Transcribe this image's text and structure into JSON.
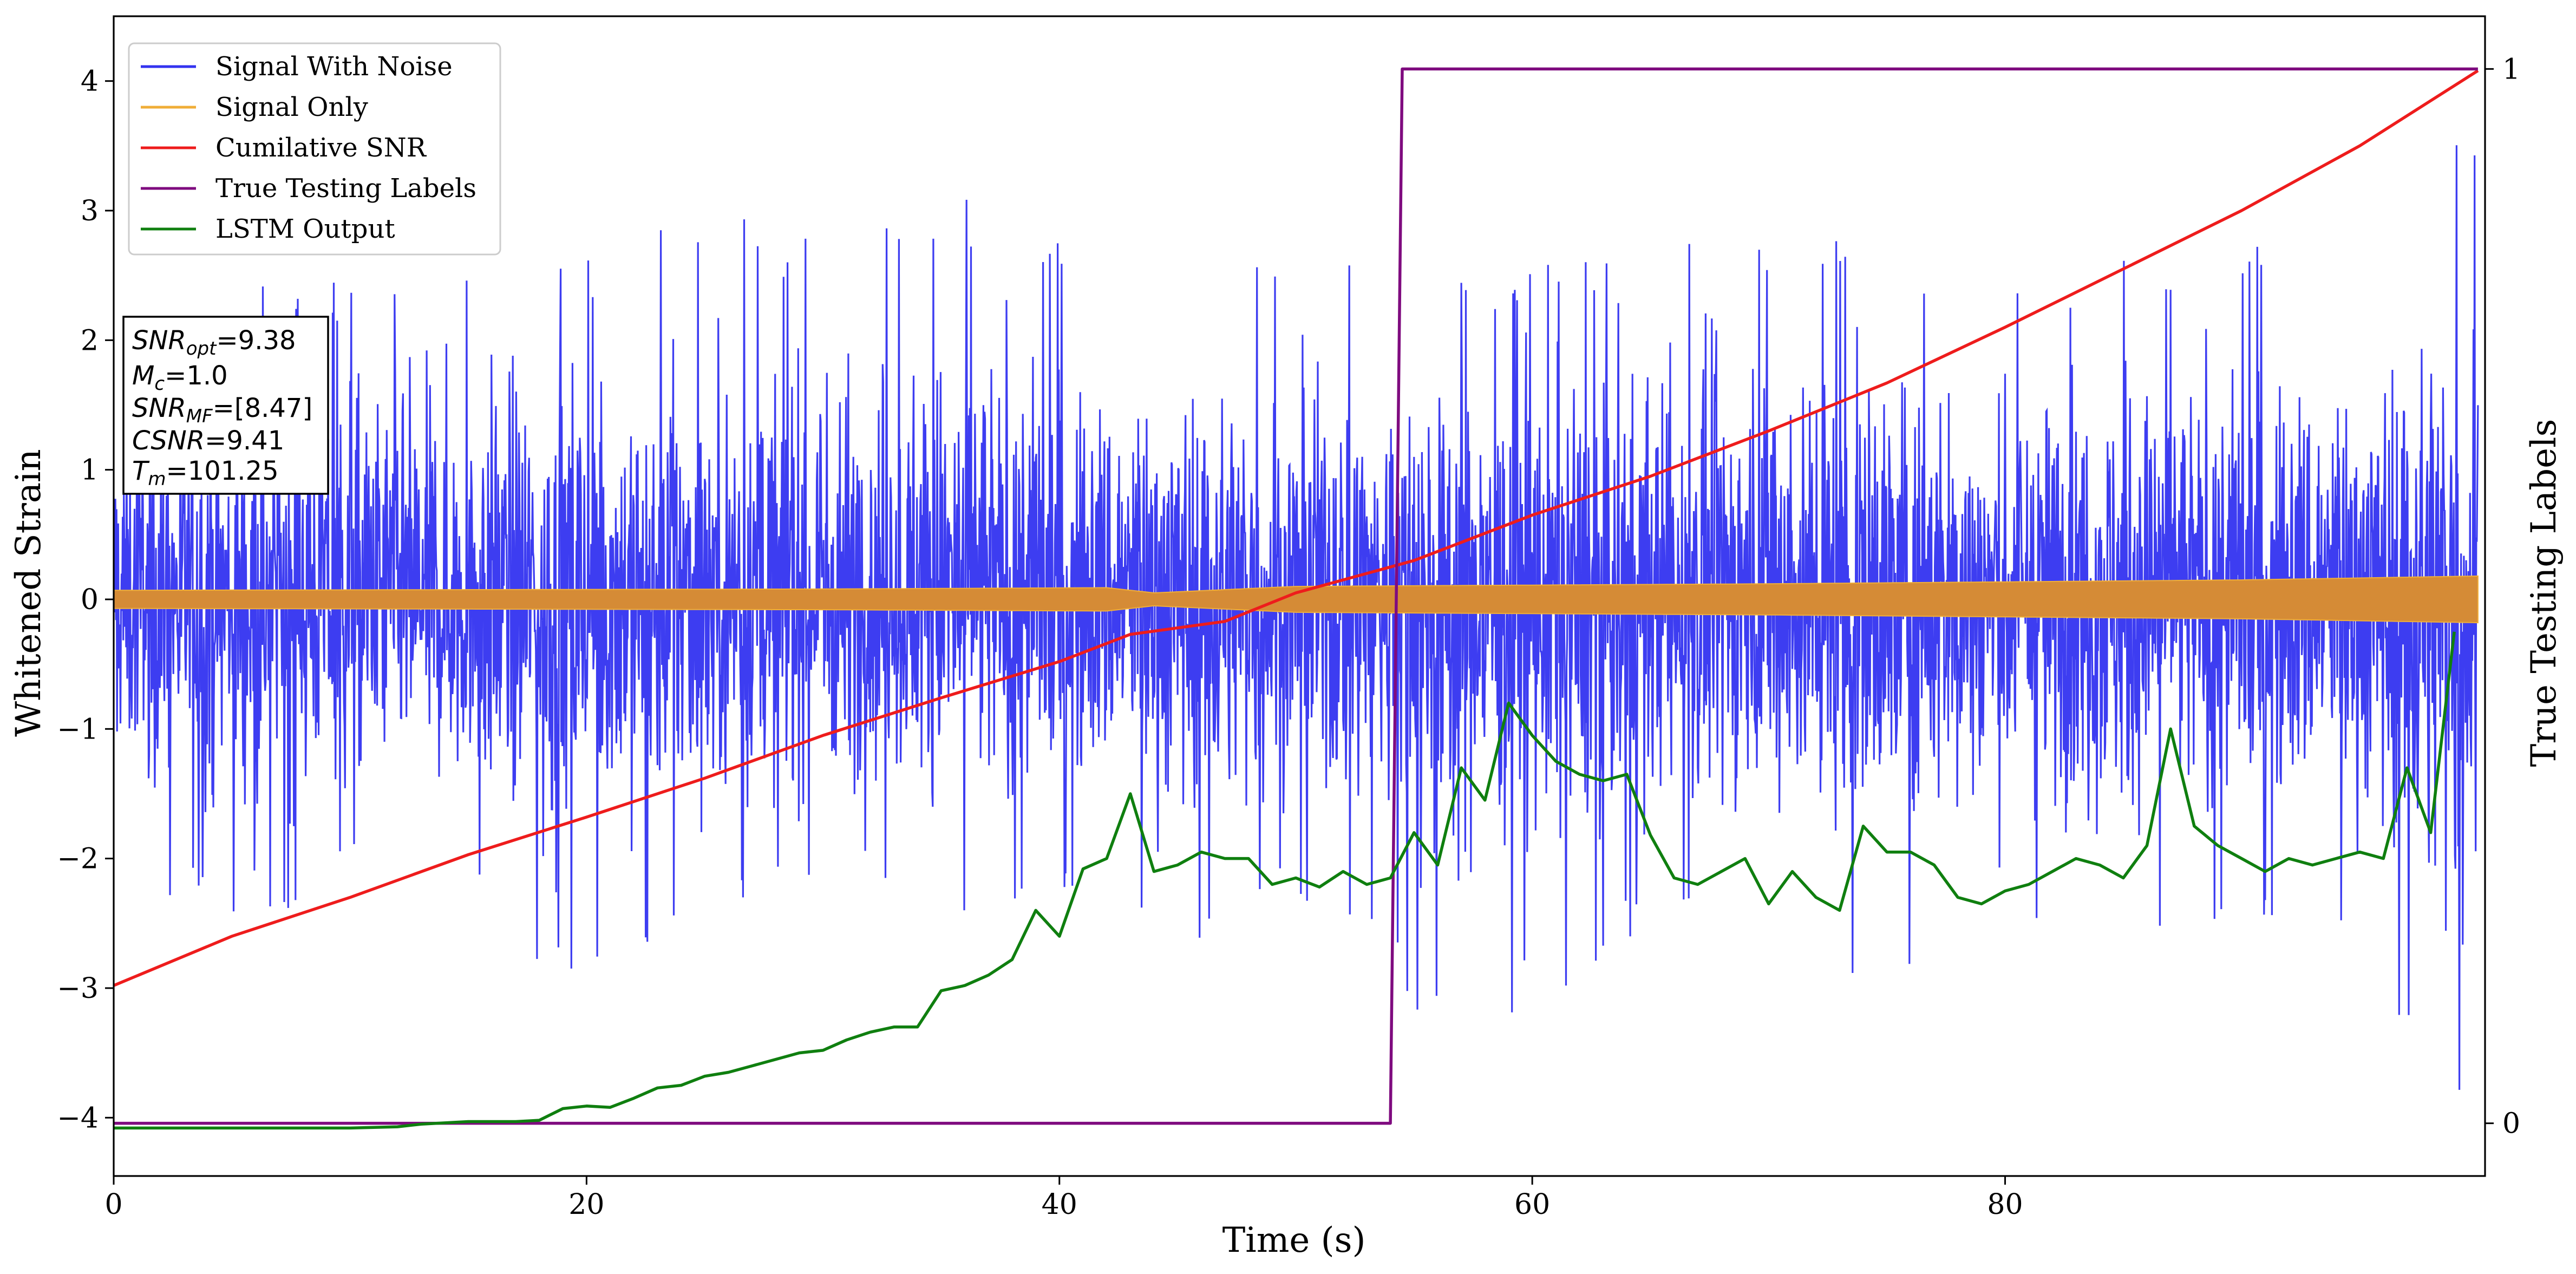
{
  "chart_data": {
    "type": "line",
    "xlabel": "Time (s)",
    "ylabel": "Whitened Strain",
    "ylabel_right": "True Testing Labels",
    "xlim": [
      0,
      100.3
    ],
    "ylim": [
      -4.45,
      4.5
    ],
    "ylim_right": [
      -0.05,
      1.05
    ],
    "x_ticks": [
      0,
      20,
      40,
      60,
      80
    ],
    "y_ticks": [
      -4,
      -3,
      -2,
      -1,
      0,
      1,
      2,
      3,
      4
    ],
    "y_ticks_right": [
      0,
      1
    ],
    "legend_position": "top-left",
    "legend": [
      "Signal With Noise",
      "Signal Only",
      "Cumilative SNR",
      "True Testing Labels",
      "LSTM Output"
    ],
    "info_box": {
      "lines": [
        {
          "name": "SNR",
          "sub": "opt",
          "value": "=9.38"
        },
        {
          "name": "M",
          "sub": "c",
          "value": "=1.0"
        },
        {
          "name": "SNR",
          "sub": "MF",
          "value": "=[8.47]"
        },
        {
          "name": "CSNR",
          "sub": "",
          "value": "=9.41"
        },
        {
          "name": "T",
          "sub": "m",
          "value": "=101.25"
        }
      ]
    },
    "series": [
      {
        "name": "Signal With Noise",
        "color": "#3333f0",
        "axis": "left",
        "description": "dense noisy strain; envelope summarized per time window",
        "envelope": [
          {
            "x": 0,
            "max": 2.2,
            "min": -2.1
          },
          {
            "x": 5,
            "max": 2.4,
            "min": -2.6
          },
          {
            "x": 10,
            "max": 2.5,
            "min": -2.2
          },
          {
            "x": 15,
            "max": 2.8,
            "min": -2.3
          },
          {
            "x": 18.5,
            "max": 2.9,
            "min": -3.1
          },
          {
            "x": 25,
            "max": 2.9,
            "min": -2.4
          },
          {
            "x": 29,
            "max": 3.0,
            "min": -2.3
          },
          {
            "x": 33,
            "max": 3.0,
            "min": -2.2
          },
          {
            "x": 37,
            "max": 3.15,
            "min": -2.5
          },
          {
            "x": 42,
            "max": 2.6,
            "min": -2.3
          },
          {
            "x": 45,
            "max": 2.7,
            "min": -2.7
          },
          {
            "x": 50,
            "max": 2.6,
            "min": -2.3
          },
          {
            "x": 55,
            "max": 2.7,
            "min": -3.2
          },
          {
            "x": 60,
            "max": 2.6,
            "min": -3.2
          },
          {
            "x": 65,
            "max": 2.7,
            "min": -2.6
          },
          {
            "x": 70,
            "max": 2.9,
            "min": -2.6
          },
          {
            "x": 74,
            "max": 2.9,
            "min": -3.0
          },
          {
            "x": 80,
            "max": 2.5,
            "min": -2.6
          },
          {
            "x": 85,
            "max": 2.7,
            "min": -2.7
          },
          {
            "x": 90,
            "max": 2.8,
            "min": -2.6
          },
          {
            "x": 95,
            "max": 2.8,
            "min": -2.6
          },
          {
            "x": 99,
            "max": 3.6,
            "min": -4.1
          }
        ]
      },
      {
        "name": "Signal Only",
        "color": "#f0ae38",
        "axis": "left",
        "amplitude": [
          {
            "x": 0,
            "a": 0.07
          },
          {
            "x": 30,
            "a": 0.08
          },
          {
            "x": 42,
            "a": 0.09
          },
          {
            "x": 44,
            "a": 0.05
          },
          {
            "x": 50,
            "a": 0.1
          },
          {
            "x": 70,
            "a": 0.12
          },
          {
            "x": 90,
            "a": 0.15
          },
          {
            "x": 100,
            "a": 0.18
          }
        ]
      },
      {
        "name": "Cumilative SNR",
        "color": "#ee1c1c",
        "axis": "left",
        "x": [
          0,
          5,
          10,
          15,
          20,
          25,
          30,
          35,
          40,
          43,
          47,
          50,
          55,
          60,
          65,
          70,
          75,
          80,
          85,
          90,
          95,
          100
        ],
        "y": [
          -2.98,
          -2.6,
          -2.3,
          -1.97,
          -1.68,
          -1.38,
          -1.05,
          -0.76,
          -0.48,
          -0.27,
          -0.17,
          0.05,
          0.3,
          0.65,
          0.95,
          1.3,
          1.67,
          2.1,
          2.55,
          3.0,
          3.5,
          4.08
        ]
      },
      {
        "name": "True Testing Labels",
        "color": "#7f0b7f",
        "axis": "right",
        "x": [
          0,
          54.0,
          54.5,
          100
        ],
        "y": [
          0,
          0,
          1,
          1
        ]
      },
      {
        "name": "LSTM Output",
        "color": "#0f7f0f",
        "axis": "left",
        "x": [
          0,
          10,
          12,
          13,
          15,
          17,
          18,
          19,
          20,
          21,
          22,
          23,
          24,
          25,
          26,
          27,
          28,
          29,
          30,
          31,
          32,
          33,
          34,
          35,
          36,
          37,
          38,
          39,
          40,
          41,
          42,
          43,
          44,
          45,
          46,
          47,
          48,
          49,
          50,
          51,
          52,
          53,
          54,
          55,
          56,
          57,
          58,
          59,
          60,
          61,
          62,
          63,
          64,
          65,
          66,
          67,
          68,
          69,
          70,
          71,
          72,
          73,
          74,
          75,
          76,
          77,
          78,
          79,
          80,
          81,
          82,
          83,
          84,
          85,
          86,
          87,
          88,
          89,
          90,
          91,
          92,
          93,
          94,
          95,
          96,
          97,
          98,
          99
        ],
        "y": [
          -4.08,
          -4.08,
          -4.07,
          -4.05,
          -4.03,
          -4.03,
          -4.02,
          -3.93,
          -3.91,
          -3.92,
          -3.85,
          -3.77,
          -3.75,
          -3.68,
          -3.65,
          -3.6,
          -3.55,
          -3.5,
          -3.48,
          -3.4,
          -3.34,
          -3.3,
          -3.3,
          -3.02,
          -2.98,
          -2.9,
          -2.78,
          -2.4,
          -2.6,
          -2.08,
          -2.0,
          -1.5,
          -2.1,
          -2.05,
          -1.95,
          -2.0,
          -2.0,
          -2.2,
          -2.15,
          -2.22,
          -2.1,
          -2.2,
          -2.15,
          -1.8,
          -2.05,
          -1.3,
          -1.55,
          -0.8,
          -1.05,
          -1.25,
          -1.35,
          -1.4,
          -1.35,
          -1.82,
          -2.15,
          -2.2,
          -2.1,
          -2.0,
          -2.35,
          -2.1,
          -2.3,
          -2.4,
          -1.75,
          -1.95,
          -1.95,
          -2.05,
          -2.3,
          -2.35,
          -2.25,
          -2.2,
          -2.1,
          -2.0,
          -2.05,
          -2.15,
          -1.9,
          -1.0,
          -1.75,
          -1.9,
          -2.0,
          -2.1,
          -2.0,
          -2.05,
          -2.0,
          -1.95,
          -2.0,
          -1.3,
          -1.8,
          -0.25
        ]
      }
    ]
  }
}
